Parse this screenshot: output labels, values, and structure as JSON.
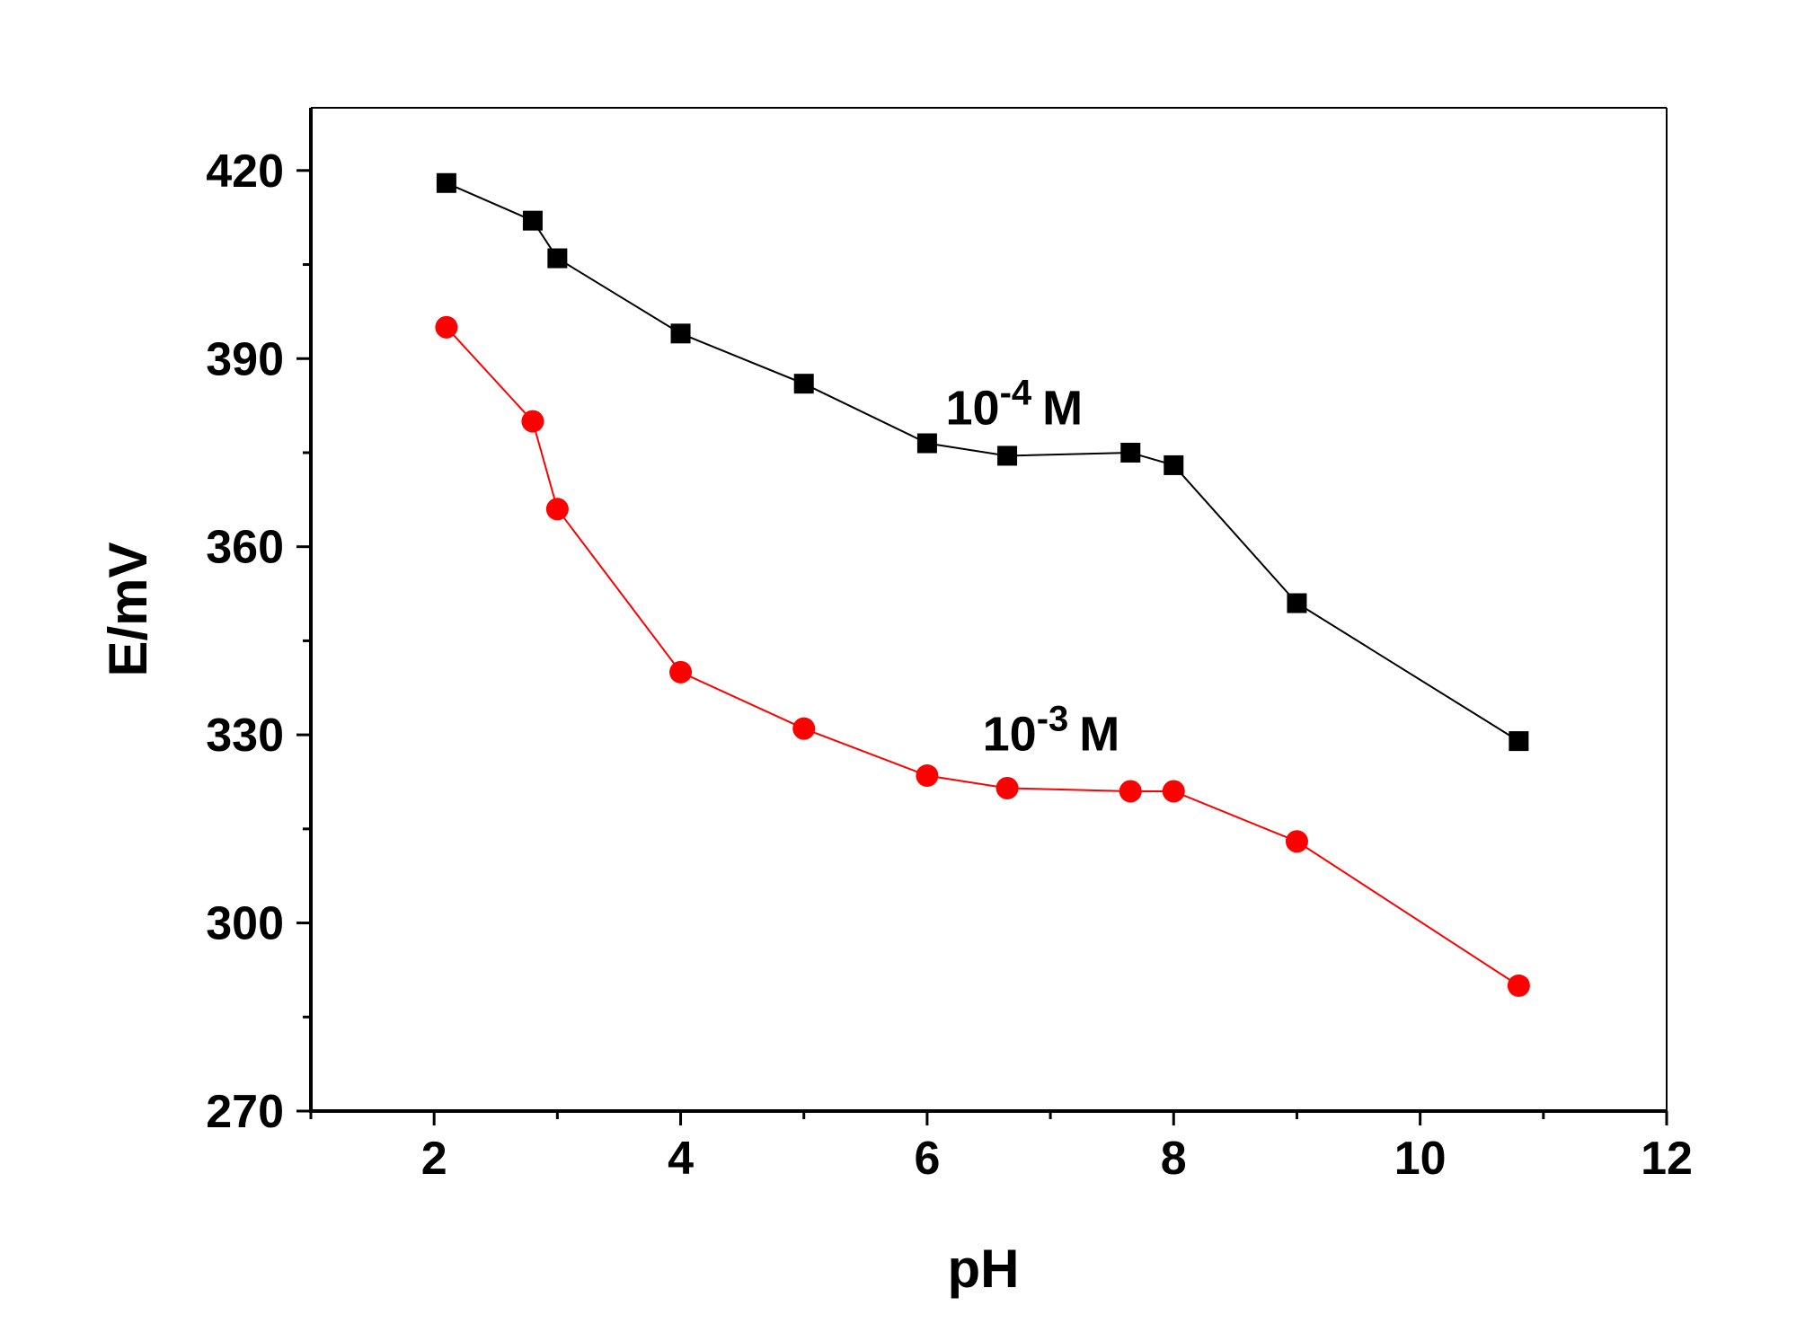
{
  "chart_data": {
    "type": "line",
    "title": "",
    "xlabel": "pH",
    "ylabel": "E/mV",
    "xlim": [
      1,
      12
    ],
    "ylim": [
      270,
      430
    ],
    "xticks": [
      2,
      4,
      6,
      8,
      10,
      12
    ],
    "yticks": [
      270,
      300,
      330,
      360,
      390,
      420
    ],
    "grid": false,
    "series": [
      {
        "name": "10-4 M",
        "color": "#000000",
        "marker": "square",
        "x": [
          2.1,
          2.8,
          3.0,
          4.0,
          5.0,
          6.0,
          6.65,
          7.65,
          8.0,
          9.0,
          10.8
        ],
        "y": [
          418,
          412,
          406,
          394,
          386,
          376.5,
          374.5,
          375,
          373,
          351,
          329
        ]
      },
      {
        "name": "10-3 M",
        "color": "#ff0000",
        "marker": "circle",
        "x": [
          2.1,
          2.8,
          3.0,
          4.0,
          5.0,
          6.0,
          6.65,
          7.65,
          8.0,
          9.0,
          10.8
        ],
        "y": [
          395,
          380,
          366,
          340,
          331,
          323.5,
          321.5,
          321,
          321,
          313,
          290
        ]
      }
    ],
    "annotations": [
      {
        "series": 0,
        "base": "10",
        "sup": "-4",
        "unit": "M",
        "x": 6.15,
        "y": 379.5
      },
      {
        "series": 1,
        "base": "10",
        "sup": "-3",
        "unit": "M",
        "x": 6.45,
        "y": 327.5
      }
    ]
  }
}
